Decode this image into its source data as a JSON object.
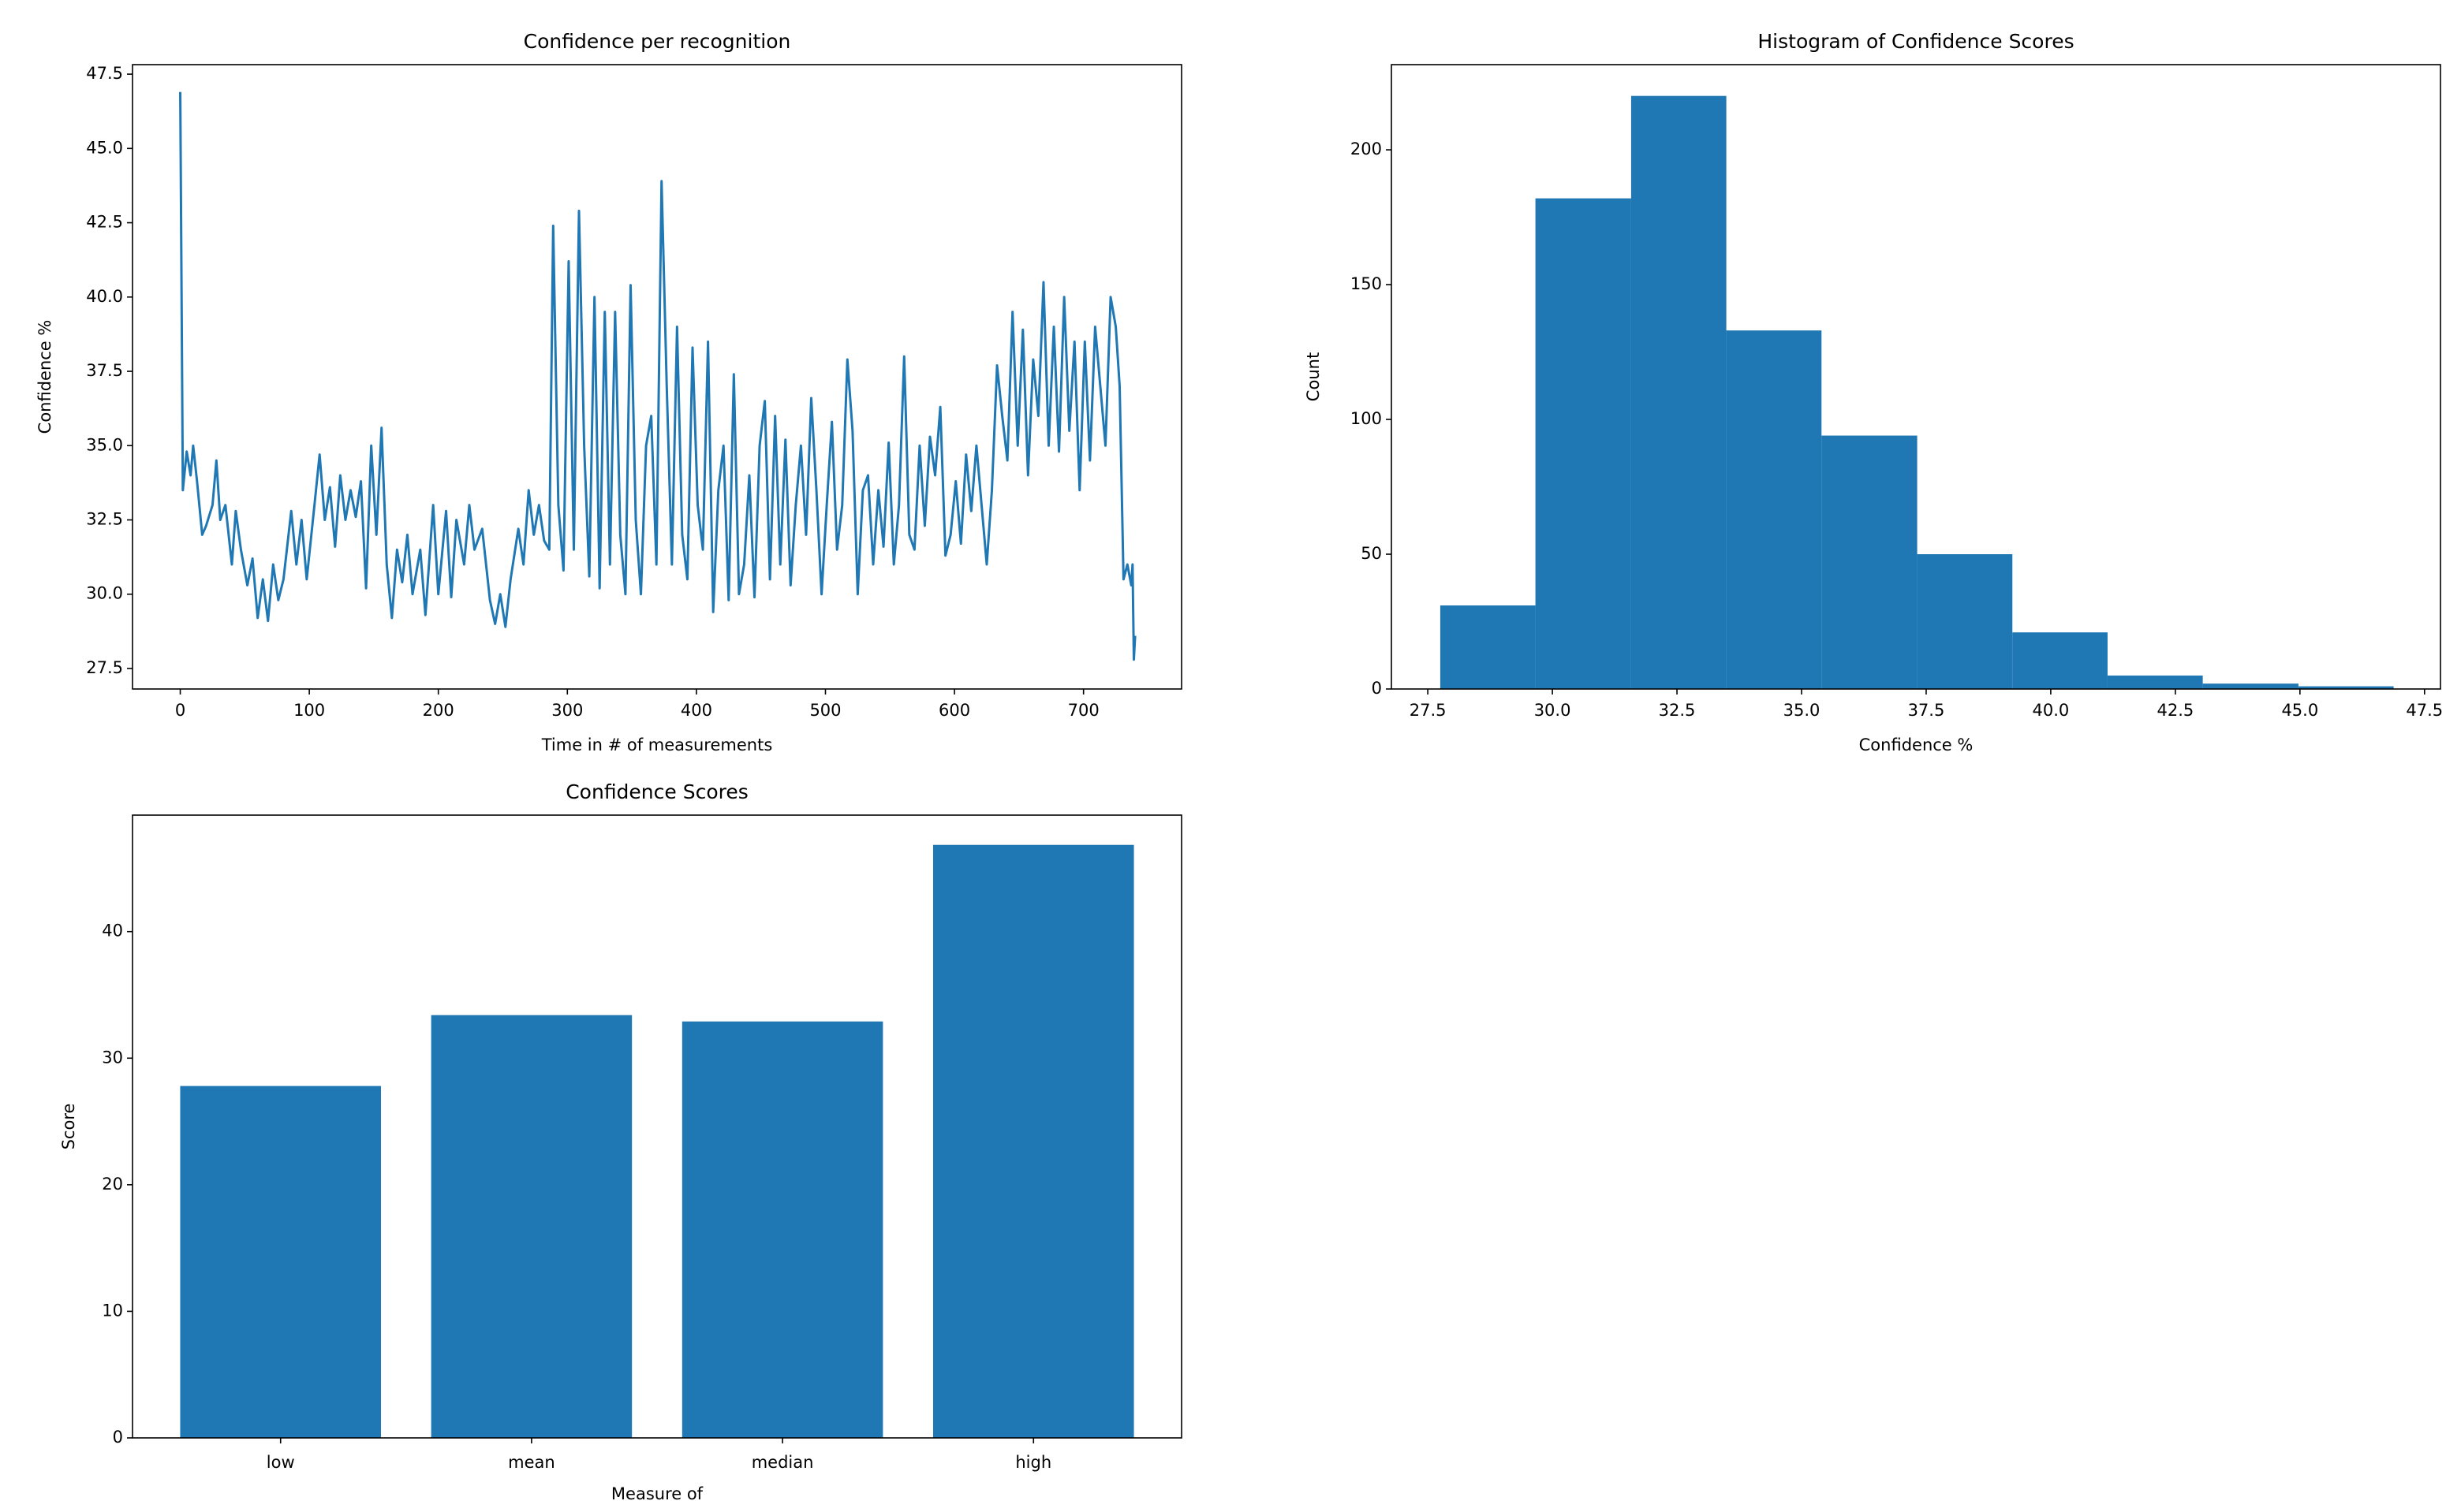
{
  "chart_data": [
    {
      "type": "line",
      "title": "Confidence per recognition",
      "xlabel": "Time in # of measurements",
      "ylabel": "Confidence %",
      "color": "#1f77b4",
      "x": [
        0,
        2,
        5,
        8,
        10,
        13,
        17,
        20,
        25,
        28,
        31,
        35,
        40,
        43,
        47,
        52,
        56,
        60,
        64,
        68,
        72,
        76,
        80,
        86,
        90,
        94,
        98,
        104,
        108,
        112,
        116,
        120,
        124,
        128,
        132,
        136,
        140,
        144,
        148,
        152,
        156,
        160,
        164,
        168,
        172,
        176,
        180,
        186,
        190,
        196,
        200,
        206,
        210,
        214,
        220,
        224,
        228,
        234,
        240,
        244,
        248,
        252,
        256,
        262,
        266,
        270,
        274,
        278,
        282,
        286,
        289,
        293,
        297,
        301,
        305,
        309,
        313,
        317,
        321,
        325,
        329,
        333,
        337,
        341,
        345,
        349,
        353,
        357,
        361,
        365,
        369,
        373,
        377,
        381,
        385,
        389,
        393,
        397,
        401,
        405,
        409,
        413,
        417,
        421,
        425,
        429,
        433,
        437,
        441,
        445,
        449,
        453,
        457,
        461,
        465,
        469,
        473,
        477,
        481,
        485,
        489,
        493,
        497,
        501,
        505,
        509,
        513,
        517,
        521,
        525,
        529,
        533,
        537,
        541,
        545,
        549,
        553,
        557,
        561,
        565,
        569,
        573,
        577,
        581,
        585,
        589,
        593,
        597,
        601,
        605,
        609,
        613,
        617,
        621,
        625,
        629,
        633,
        637,
        641,
        645,
        649,
        653,
        657,
        661,
        665,
        669,
        673,
        677,
        681,
        685,
        689,
        693,
        697,
        701,
        705,
        709,
        713,
        717,
        721,
        725,
        728,
        731,
        734,
        737,
        738,
        739,
        740
      ],
      "values": [
        46.9,
        33.5,
        34.8,
        34.0,
        35.0,
        33.8,
        32.0,
        32.3,
        33.0,
        34.5,
        32.5,
        33.0,
        31.0,
        32.8,
        31.5,
        30.3,
        31.2,
        29.2,
        30.5,
        29.1,
        31.0,
        29.8,
        30.5,
        32.8,
        31.0,
        32.5,
        30.5,
        33.0,
        34.7,
        32.5,
        33.6,
        31.6,
        34.0,
        32.5,
        33.5,
        32.6,
        33.8,
        30.2,
        35.0,
        32.0,
        35.6,
        31.0,
        29.2,
        31.5,
        30.4,
        32.0,
        30.0,
        31.5,
        29.3,
        33.0,
        30.0,
        32.8,
        29.9,
        32.5,
        31.0,
        33.0,
        31.5,
        32.2,
        29.8,
        29.0,
        30.0,
        28.9,
        30.5,
        32.2,
        31.0,
        33.5,
        32.0,
        33.0,
        31.8,
        31.5,
        42.4,
        33.0,
        30.8,
        41.2,
        31.5,
        42.9,
        35.0,
        30.6,
        40.0,
        30.2,
        39.5,
        31.0,
        39.5,
        32.0,
        30.0,
        40.4,
        32.5,
        30.0,
        35.0,
        36.0,
        31.0,
        43.9,
        37.0,
        31.0,
        39.0,
        32.0,
        30.5,
        38.3,
        33.0,
        31.5,
        38.5,
        29.4,
        33.5,
        35.0,
        29.8,
        37.4,
        30.0,
        31.0,
        34.0,
        29.9,
        35.0,
        36.5,
        30.5,
        36.0,
        31.0,
        35.2,
        30.3,
        33.0,
        35.0,
        32.0,
        36.6,
        33.5,
        30.0,
        33.0,
        35.8,
        31.5,
        33.0,
        37.9,
        35.5,
        30.0,
        33.5,
        34.0,
        31.0,
        33.5,
        31.6,
        35.1,
        31.0,
        33.0,
        38.0,
        32.0,
        31.5,
        35.0,
        32.3,
        35.3,
        34.0,
        36.3,
        31.3,
        32.0,
        33.8,
        31.7,
        34.7,
        32.8,
        35.0,
        33.0,
        31.0,
        33.5,
        37.7,
        36.0,
        34.5,
        39.5,
        35.0,
        38.9,
        34.0,
        37.9,
        36.0,
        40.5,
        35.0,
        39.0,
        34.8,
        40.0,
        35.5,
        38.5,
        33.5,
        38.5,
        34.5,
        39.0,
        37.0,
        35.0,
        40.0,
        39.0,
        37.0,
        30.5,
        31.0,
        30.3,
        31.0,
        27.8,
        28.6
      ],
      "xlim": [
        -37,
        776
      ],
      "xticks": [
        0,
        100,
        200,
        300,
        400,
        500,
        600,
        700
      ],
      "ylim": [
        26.81,
        47.82
      ],
      "yticks": [
        27.5,
        {
          "value": 30,
          "label": "30.0"
        },
        32.5,
        {
          "value": 35,
          "label": "35.0"
        },
        37.5,
        {
          "value": 40,
          "label": "40.0"
        },
        42.5,
        {
          "value": 45,
          "label": "45.0"
        },
        47.5
      ]
    },
    {
      "type": "histogram",
      "title": "Histogram of Confidence Scores",
      "xlabel": "Confidence %",
      "ylabel": "Count",
      "color": "#1f77b4",
      "bins": [
        27.75,
        29.66,
        31.58,
        33.49,
        35.4,
        37.32,
        39.23,
        41.14,
        43.05,
        44.97,
        46.88
      ],
      "values": [
        31,
        182,
        220,
        133,
        94,
        50,
        21,
        5,
        2,
        1
      ],
      "xlim": [
        26.77,
        47.82
      ],
      "xticks": [
        27.5,
        {
          "value": 30,
          "label": "30.0"
        },
        32.5,
        {
          "value": 35,
          "label": "35.0"
        },
        37.5,
        {
          "value": 40,
          "label": "40.0"
        },
        42.5,
        {
          "value": 45,
          "label": "45.0"
        },
        47.5
      ],
      "ylim": [
        0,
        231.6
      ],
      "yticks": [
        0,
        50,
        100,
        150,
        200
      ]
    },
    {
      "type": "bar",
      "title": "Confidence Scores",
      "xlabel": "Measure of",
      "ylabel": "Score",
      "color": "#1f77b4",
      "categories": [
        "low",
        "mean",
        "median",
        "high"
      ],
      "values": [
        27.8,
        33.4,
        32.9,
        46.85
      ],
      "ylim": [
        0,
        49.2
      ],
      "yticks": [
        0,
        10,
        20,
        30,
        40
      ]
    }
  ]
}
